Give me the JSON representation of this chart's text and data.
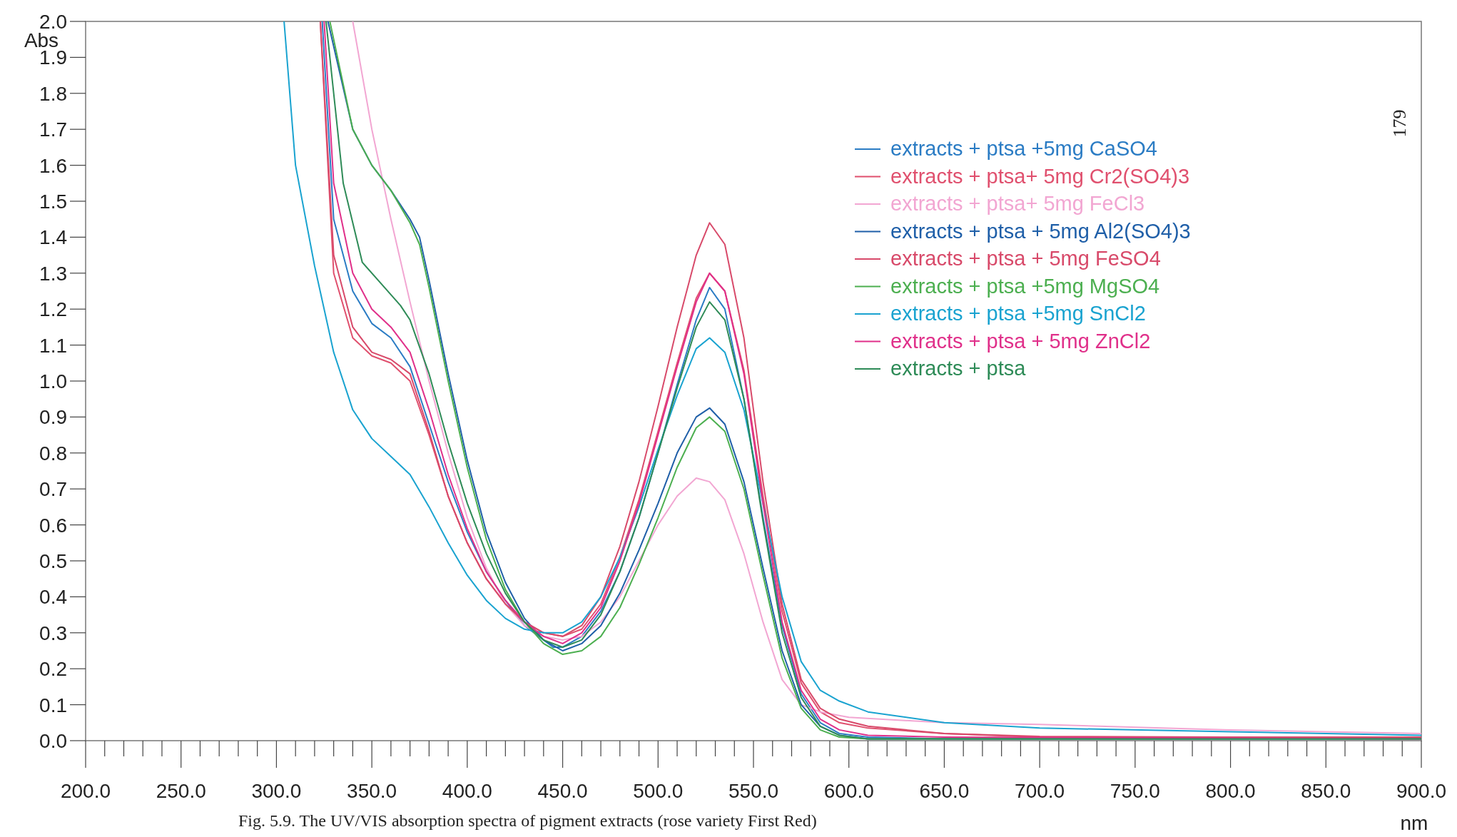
{
  "chart_data": {
    "type": "line",
    "xlabel": "nm",
    "ylabel": "Abs",
    "xlim": [
      200,
      900
    ],
    "ylim": [
      0,
      2
    ],
    "xticks": [
      {
        "value": 200,
        "label": "200.0"
      },
      {
        "value": 250,
        "label": "250.0"
      },
      {
        "value": 300,
        "label": "300.0"
      },
      {
        "value": 350,
        "label": "350.0"
      },
      {
        "value": 400,
        "label": "400.0"
      },
      {
        "value": 450,
        "label": "450.0"
      },
      {
        "value": 500,
        "label": "500.0"
      },
      {
        "value": 550,
        "label": "550.0"
      },
      {
        "value": 600,
        "label": "600.0"
      },
      {
        "value": 650,
        "label": "650.0"
      },
      {
        "value": 700,
        "label": "700.0"
      },
      {
        "value": 750,
        "label": "750.0"
      },
      {
        "value": 800,
        "label": "800.0"
      },
      {
        "value": 850,
        "label": "850.0"
      },
      {
        "value": 900,
        "label": "900.0"
      }
    ],
    "yticks": [
      {
        "value": 0,
        "label": "0.0"
      },
      {
        "value": 0.1,
        "label": "0.1"
      },
      {
        "value": 0.2,
        "label": "0.2"
      },
      {
        "value": 0.3,
        "label": "0.3"
      },
      {
        "value": 0.4,
        "label": "0.4"
      },
      {
        "value": 0.5,
        "label": "0.5"
      },
      {
        "value": 0.6,
        "label": "0.6"
      },
      {
        "value": 0.7,
        "label": "0.7"
      },
      {
        "value": 0.8,
        "label": "0.8"
      },
      {
        "value": 0.9,
        "label": "0.9"
      },
      {
        "value": 1,
        "label": "1.0"
      },
      {
        "value": 1.1,
        "label": "1.1"
      },
      {
        "value": 1.2,
        "label": "1.2"
      },
      {
        "value": 1.3,
        "label": "1.3"
      },
      {
        "value": 1.4,
        "label": "1.4"
      },
      {
        "value": 1.5,
        "label": "1.5"
      },
      {
        "value": 1.6,
        "label": "1.6"
      },
      {
        "value": 1.7,
        "label": "1.7"
      },
      {
        "value": 1.8,
        "label": "1.8"
      },
      {
        "value": 1.9,
        "label": "1.9"
      },
      {
        "value": 2,
        "label": "2.0"
      }
    ],
    "grid": false,
    "legend": "top right",
    "marker": "none",
    "line_style": "solid",
    "annotations": [
      "179",
      "Fig. 5.9. The UV/VIS absorption spectra of pigment extracts (rose variety First Red)"
    ],
    "series": [
      {
        "name": "extracts + ptsa +5mg CaSO4",
        "color": "#2b7cc4",
        "x": [
          324,
          330,
          340,
          350,
          360,
          370,
          380,
          390,
          400,
          410,
          420,
          430,
          440,
          445,
          450,
          460,
          470,
          480,
          490,
          500,
          510,
          520,
          527,
          535,
          545,
          555,
          565,
          575,
          585,
          595,
          610,
          650,
          700,
          900
        ],
        "values": [
          2.0,
          1.45,
          1.25,
          1.16,
          1.12,
          1.04,
          0.88,
          0.72,
          0.58,
          0.47,
          0.39,
          0.32,
          0.28,
          0.26,
          0.26,
          0.29,
          0.36,
          0.47,
          0.62,
          0.8,
          0.99,
          1.17,
          1.26,
          1.2,
          0.95,
          0.62,
          0.32,
          0.13,
          0.05,
          0.02,
          0.01,
          0.005,
          0.005,
          0.005
        ]
      },
      {
        "name": "extracts + ptsa+ 5mg Cr2(SO4)3",
        "color": "#e0506e",
        "x": [
          323,
          330,
          340,
          350,
          360,
          370,
          380,
          390,
          400,
          410,
          420,
          430,
          440,
          450,
          460,
          470,
          480,
          490,
          500,
          510,
          520,
          527,
          535,
          545,
          555,
          565,
          575,
          585,
          595,
          610,
          650,
          700,
          900
        ],
        "values": [
          2.0,
          1.3,
          1.12,
          1.07,
          1.05,
          1.0,
          0.85,
          0.68,
          0.55,
          0.45,
          0.38,
          0.33,
          0.3,
          0.29,
          0.31,
          0.38,
          0.51,
          0.67,
          0.86,
          1.05,
          1.23,
          1.3,
          1.25,
          1.03,
          0.68,
          0.36,
          0.16,
          0.08,
          0.05,
          0.035,
          0.02,
          0.012,
          0.008
        ]
      },
      {
        "name": "extracts + ptsa+ 5mg FeCl3",
        "color": "#f2a6d2",
        "x": [
          340,
          350,
          360,
          370,
          380,
          390,
          400,
          410,
          420,
          430,
          440,
          450,
          460,
          470,
          480,
          490,
          500,
          510,
          520,
          527,
          535,
          545,
          555,
          565,
          575,
          585,
          600,
          650,
          700,
          800,
          900
        ],
        "values": [
          2.0,
          1.7,
          1.45,
          1.22,
          1.0,
          0.8,
          0.62,
          0.48,
          0.38,
          0.32,
          0.29,
          0.28,
          0.29,
          0.33,
          0.4,
          0.5,
          0.6,
          0.68,
          0.73,
          0.72,
          0.67,
          0.52,
          0.33,
          0.17,
          0.1,
          0.08,
          0.065,
          0.05,
          0.045,
          0.03,
          0.02
        ]
      },
      {
        "name": "extracts + ptsa + 5mg Al2(SO4)3",
        "color": "#1f5fa8",
        "x": [
          327,
          340,
          350,
          360,
          370,
          375,
          380,
          390,
          400,
          410,
          420,
          430,
          440,
          450,
          460,
          470,
          480,
          490,
          500,
          510,
          520,
          527,
          535,
          545,
          555,
          565,
          575,
          585,
          595,
          610,
          900
        ],
        "values": [
          2.0,
          1.7,
          1.6,
          1.53,
          1.45,
          1.4,
          1.28,
          1.02,
          0.78,
          0.58,
          0.44,
          0.34,
          0.28,
          0.25,
          0.27,
          0.32,
          0.41,
          0.53,
          0.66,
          0.8,
          0.9,
          0.925,
          0.88,
          0.72,
          0.48,
          0.25,
          0.1,
          0.04,
          0.015,
          0.005,
          0.005
        ]
      },
      {
        "name": "extracts + ptsa + 5mg FeSO4",
        "color": "#d84a6a",
        "x": [
          323,
          330,
          340,
          350,
          360,
          370,
          380,
          390,
          400,
          410,
          420,
          430,
          440,
          450,
          460,
          470,
          480,
          490,
          500,
          510,
          520,
          527,
          535,
          545,
          555,
          565,
          575,
          585,
          595,
          610,
          650,
          700,
          800,
          900
        ],
        "values": [
          2.0,
          1.35,
          1.15,
          1.08,
          1.06,
          1.02,
          0.86,
          0.68,
          0.55,
          0.45,
          0.38,
          0.33,
          0.3,
          0.29,
          0.32,
          0.4,
          0.54,
          0.72,
          0.93,
          1.15,
          1.35,
          1.44,
          1.38,
          1.12,
          0.72,
          0.38,
          0.17,
          0.09,
          0.06,
          0.04,
          0.02,
          0.01,
          0.01,
          0.01
        ]
      },
      {
        "name": "extracts + ptsa +5mg MgSO4",
        "color": "#4caf50",
        "x": [
          328,
          340,
          350,
          360,
          370,
          375,
          380,
          390,
          400,
          410,
          420,
          430,
          440,
          450,
          460,
          470,
          480,
          490,
          500,
          510,
          520,
          527,
          535,
          545,
          555,
          565,
          575,
          585,
          595,
          610,
          900
        ],
        "values": [
          2.0,
          1.7,
          1.6,
          1.53,
          1.44,
          1.38,
          1.26,
          1.0,
          0.76,
          0.56,
          0.42,
          0.33,
          0.27,
          0.24,
          0.25,
          0.29,
          0.37,
          0.49,
          0.62,
          0.76,
          0.87,
          0.9,
          0.86,
          0.7,
          0.46,
          0.23,
          0.09,
          0.03,
          0.01,
          0.005,
          0.005
        ]
      },
      {
        "name": "extracts + ptsa +5mg SnCl2",
        "color": "#1aa3d0",
        "x": [
          304,
          310,
          320,
          330,
          340,
          350,
          360,
          370,
          380,
          390,
          400,
          410,
          420,
          430,
          440,
          450,
          460,
          470,
          480,
          490,
          500,
          510,
          520,
          527,
          535,
          545,
          555,
          565,
          575,
          585,
          595,
          610,
          650,
          700,
          800,
          900
        ],
        "values": [
          2.0,
          1.6,
          1.32,
          1.08,
          0.92,
          0.84,
          0.79,
          0.74,
          0.65,
          0.55,
          0.46,
          0.39,
          0.34,
          0.31,
          0.3,
          0.3,
          0.33,
          0.4,
          0.51,
          0.65,
          0.81,
          0.96,
          1.09,
          1.12,
          1.08,
          0.92,
          0.66,
          0.4,
          0.22,
          0.14,
          0.11,
          0.08,
          0.05,
          0.035,
          0.025,
          0.015
        ]
      },
      {
        "name": "extracts + ptsa + 5mg ZnCl2",
        "color": "#e0308a",
        "x": [
          325,
          330,
          340,
          350,
          360,
          370,
          380,
          390,
          400,
          410,
          420,
          430,
          440,
          450,
          460,
          470,
          480,
          490,
          500,
          510,
          520,
          527,
          535,
          545,
          555,
          565,
          575,
          585,
          595,
          610,
          650,
          900
        ],
        "values": [
          2.0,
          1.55,
          1.3,
          1.2,
          1.15,
          1.08,
          0.92,
          0.74,
          0.59,
          0.47,
          0.39,
          0.33,
          0.29,
          0.27,
          0.3,
          0.37,
          0.5,
          0.66,
          0.85,
          1.04,
          1.22,
          1.3,
          1.25,
          1.02,
          0.66,
          0.33,
          0.14,
          0.06,
          0.03,
          0.015,
          0.01,
          0.005
        ]
      },
      {
        "name": "extracts + ptsa",
        "color": "#2e8b57",
        "x": [
          326,
          335,
          345,
          355,
          365,
          370,
          380,
          390,
          400,
          410,
          420,
          430,
          440,
          450,
          460,
          470,
          480,
          490,
          500,
          510,
          520,
          527,
          535,
          545,
          555,
          565,
          575,
          585,
          595,
          610,
          900
        ],
        "values": [
          2.0,
          1.55,
          1.33,
          1.27,
          1.21,
          1.17,
          1.02,
          0.83,
          0.66,
          0.52,
          0.41,
          0.33,
          0.28,
          0.26,
          0.28,
          0.35,
          0.47,
          0.62,
          0.8,
          0.98,
          1.15,
          1.22,
          1.17,
          0.95,
          0.61,
          0.3,
          0.12,
          0.04,
          0.015,
          0.005,
          0.005
        ]
      }
    ]
  }
}
